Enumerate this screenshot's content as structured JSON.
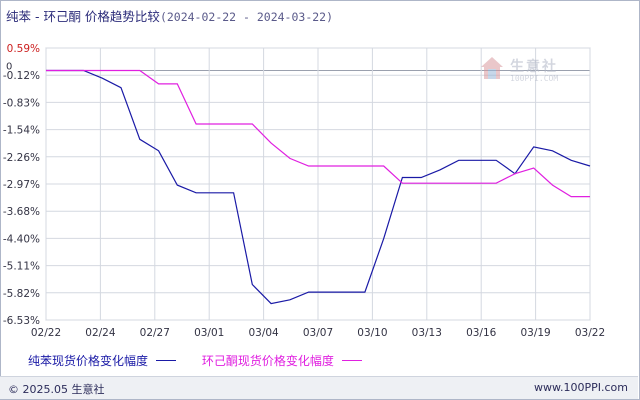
{
  "title": {
    "name": "纯苯 - 环己酮 价格趋势比较",
    "range": "(2024-02-22 - 2024-03-22)"
  },
  "watermark": {
    "brand": "生意社",
    "site": "100PPI.COM"
  },
  "footer": {
    "copyright": "© 2025.05 生意社",
    "site": "www.100PPI.com"
  },
  "chart_data": {
    "type": "line",
    "title": "纯苯 - 环己酮 价格趋势比较(2024-02-22 - 2024-03-22)",
    "xlabel": "",
    "ylabel": "",
    "x_ticks": [
      "02/22",
      "02/24",
      "02/27",
      "03/01",
      "03/04",
      "03/07",
      "03/10",
      "03/13",
      "03/16",
      "03/19",
      "03/22"
    ],
    "y_ticks": [
      "0.59%",
      "-0.12%",
      "-0.83%",
      "-1.54%",
      "-2.26%",
      "-2.97%",
      "-3.68%",
      "-4.40%",
      "-5.11%",
      "-5.82%",
      "-6.53%"
    ],
    "y_zero_label": "0",
    "ylim": [
      -6.53,
      0.59
    ],
    "grid": true,
    "legend_position": "bottom",
    "x_unit": "day index from 02/22",
    "series": [
      {
        "name": "纯苯现货价格变化幅度",
        "color": "#1a1aa6",
        "points": [
          [
            0,
            0
          ],
          [
            1,
            0
          ],
          [
            2,
            0
          ],
          [
            3,
            -0.2
          ],
          [
            4,
            -0.45
          ],
          [
            5,
            -1.8
          ],
          [
            6,
            -2.1
          ],
          [
            7,
            -3.0
          ],
          [
            8,
            -3.2
          ],
          [
            9,
            -3.2
          ],
          [
            10,
            -3.2
          ],
          [
            11,
            -5.6
          ],
          [
            12,
            -6.1
          ],
          [
            13,
            -6.0
          ],
          [
            14,
            -5.8
          ],
          [
            15,
            -5.8
          ],
          [
            16,
            -5.8
          ],
          [
            17,
            -5.8
          ],
          [
            18,
            -4.4
          ],
          [
            19,
            -2.8
          ],
          [
            20,
            -2.8
          ],
          [
            21,
            -2.6
          ],
          [
            22,
            -2.35
          ],
          [
            23,
            -2.35
          ],
          [
            24,
            -2.35
          ],
          [
            25,
            -2.7
          ],
          [
            26,
            -2.0
          ],
          [
            27,
            -2.1
          ],
          [
            28,
            -2.35
          ],
          [
            29,
            -2.5
          ]
        ]
      },
      {
        "name": "环己酮现货价格变化幅度",
        "color": "#e020e0",
        "points": [
          [
            0,
            0
          ],
          [
            1,
            0
          ],
          [
            2,
            0
          ],
          [
            3,
            0
          ],
          [
            4,
            0
          ],
          [
            5,
            0
          ],
          [
            6,
            -0.35
          ],
          [
            7,
            -0.35
          ],
          [
            8,
            -1.4
          ],
          [
            9,
            -1.4
          ],
          [
            10,
            -1.4
          ],
          [
            11,
            -1.4
          ],
          [
            12,
            -1.9
          ],
          [
            13,
            -2.3
          ],
          [
            14,
            -2.5
          ],
          [
            15,
            -2.5
          ],
          [
            16,
            -2.5
          ],
          [
            17,
            -2.5
          ],
          [
            18,
            -2.5
          ],
          [
            19,
            -2.95
          ],
          [
            20,
            -2.95
          ],
          [
            21,
            -2.95
          ],
          [
            22,
            -2.95
          ],
          [
            23,
            -2.95
          ],
          [
            24,
            -2.95
          ],
          [
            25,
            -2.7
          ],
          [
            26,
            -2.55
          ],
          [
            27,
            -3.0
          ],
          [
            28,
            -3.3
          ],
          [
            29,
            -3.3
          ]
        ]
      }
    ]
  }
}
